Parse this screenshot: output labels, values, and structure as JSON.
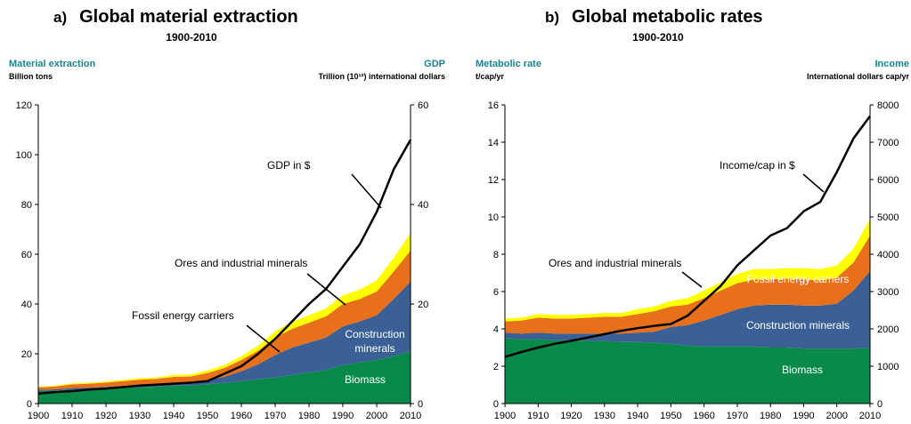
{
  "panels": [
    {
      "letter": "a)",
      "title": "Global material extraction",
      "subtitle": "1900-2010",
      "left_axis": {
        "title": "Material extraction",
        "unit": "Billion tons",
        "ticks": [
          "0",
          "20",
          "40",
          "60",
          "80",
          "100",
          "120"
        ]
      },
      "right_axis": {
        "title": "GDP",
        "unit": "Trillion (10¹²) international dollars",
        "ticks": [
          "0",
          "20",
          "40",
          "60"
        ]
      },
      "x_ticks": [
        "1900",
        "1910",
        "1920",
        "1930",
        "1940",
        "1950",
        "1960",
        "1970",
        "1980",
        "1990",
        "2000",
        "2010"
      ],
      "annotations": {
        "gdp": "GDP in $",
        "ores": "Ores and industrial minerals",
        "fossil": "Fossil energy carriers",
        "construction_1": "Construction",
        "construction_2": "minerals",
        "biomass": "Biomass"
      }
    },
    {
      "letter": "b)",
      "title": "Global metabolic rates",
      "subtitle": "1900-2010",
      "left_axis": {
        "title": "Metabolic rate",
        "unit": "t/cap/yr",
        "ticks": [
          "0",
          "2",
          "4",
          "6",
          "8",
          "10",
          "12",
          "14",
          "16"
        ]
      },
      "right_axis": {
        "title": "Income",
        "unit": "International dollars cap/yr",
        "ticks": [
          "0",
          "1000",
          "2000",
          "3000",
          "4000",
          "5000",
          "6000",
          "7000",
          "8000"
        ]
      },
      "x_ticks": [
        "1900",
        "1910",
        "1920",
        "1930",
        "1940",
        "1950",
        "1960",
        "1970",
        "1980",
        "1990",
        "2000",
        "2010"
      ],
      "annotations": {
        "income": "Income/cap in $",
        "ores": "Ores and industrial minerals",
        "fossil": "Fossil energy carriers",
        "construction": "Construction minerals",
        "biomass": "Biomass"
      }
    }
  ],
  "colors": {
    "biomass": "#0a8a4a",
    "construction": "#3a6096",
    "fossil": "#e8701a",
    "ores": "#ffff00",
    "line": "#000000",
    "axis_title": "#17858f"
  },
  "chart_data": [
    {
      "type": "area",
      "title": "Global material extraction",
      "subtitle": "1900-2010",
      "x": [
        1900,
        1905,
        1910,
        1915,
        1920,
        1925,
        1930,
        1935,
        1940,
        1945,
        1950,
        1955,
        1960,
        1965,
        1970,
        1975,
        1980,
        1985,
        1990,
        1995,
        2000,
        2005,
        2010
      ],
      "ylabel": "Material extraction, Billion tons",
      "y2label": "GDP, Trillion (10¹²) international dollars",
      "ylim": [
        0,
        120
      ],
      "y2lim": [
        0,
        60
      ],
      "xlim": [
        1900,
        2010
      ],
      "stacked": true,
      "series": [
        {
          "name": "Biomass",
          "values": [
            5.0,
            5.2,
            5.6,
            5.8,
            6.0,
            6.3,
            6.6,
            6.8,
            7.2,
            7.3,
            7.8,
            8.3,
            9.0,
            9.8,
            10.5,
            11.5,
            12.5,
            13.5,
            15.5,
            16.5,
            17.5,
            19.0,
            21.0
          ]
        },
        {
          "name": "Construction minerals",
          "values": [
            0.5,
            0.5,
            0.6,
            0.6,
            0.7,
            0.8,
            0.9,
            0.9,
            1.0,
            1.0,
            1.5,
            2.5,
            4.0,
            6.0,
            9.0,
            11.0,
            12.0,
            13.0,
            15.5,
            16.5,
            18.0,
            23.0,
            28.0
          ]
        },
        {
          "name": "Fossil energy carriers",
          "values": [
            1.0,
            1.2,
            1.5,
            1.6,
            1.7,
            1.9,
            2.1,
            2.2,
            2.5,
            2.6,
            3.0,
            3.5,
            4.5,
            5.5,
            7.0,
            7.5,
            8.0,
            8.5,
            9.0,
            9.0,
            9.5,
            11.0,
            12.5
          ]
        },
        {
          "name": "Ores and industrial minerals",
          "values": [
            0.3,
            0.3,
            0.4,
            0.4,
            0.5,
            0.5,
            0.6,
            0.6,
            0.8,
            0.8,
            1.0,
            1.2,
            1.5,
            2.0,
            2.5,
            2.8,
            3.0,
            3.2,
            3.5,
            3.8,
            4.5,
            5.5,
            7.0
          ]
        }
      ],
      "line": {
        "name": "GDP in $",
        "axis": "right",
        "values": [
          2.0,
          2.3,
          2.5,
          2.8,
          3.0,
          3.3,
          3.6,
          3.8,
          4.0,
          4.2,
          4.5,
          6.0,
          7.5,
          10.0,
          13.0,
          16.5,
          20.0,
          23.0,
          27.5,
          32.0,
          38.5,
          47.0,
          53.0
        ]
      }
    },
    {
      "type": "area",
      "title": "Global metabolic rates",
      "subtitle": "1900-2010",
      "x": [
        1900,
        1905,
        1910,
        1915,
        1920,
        1925,
        1930,
        1935,
        1940,
        1945,
        1950,
        1955,
        1960,
        1965,
        1970,
        1975,
        1980,
        1985,
        1990,
        1995,
        2000,
        2005,
        2010
      ],
      "ylabel": "Metabolic rate, t/cap/yr",
      "y2label": "Income, International dollars cap/yr",
      "ylim": [
        0,
        16
      ],
      "y2lim": [
        0,
        8000
      ],
      "xlim": [
        1900,
        2010
      ],
      "stacked": true,
      "series": [
        {
          "name": "Biomass",
          "values": [
            3.5,
            3.45,
            3.45,
            3.4,
            3.4,
            3.35,
            3.35,
            3.3,
            3.3,
            3.25,
            3.2,
            3.1,
            3.05,
            3.05,
            3.05,
            3.05,
            3.0,
            3.0,
            2.95,
            2.95,
            2.95,
            2.95,
            3.0
          ]
        },
        {
          "name": "Construction minerals",
          "values": [
            0.3,
            0.3,
            0.35,
            0.35,
            0.35,
            0.4,
            0.4,
            0.45,
            0.5,
            0.6,
            0.9,
            1.1,
            1.4,
            1.7,
            2.0,
            2.2,
            2.3,
            2.3,
            2.3,
            2.3,
            2.4,
            3.1,
            4.1
          ]
        },
        {
          "name": "Fossil energy carriers",
          "values": [
            0.6,
            0.7,
            0.8,
            0.8,
            0.8,
            0.85,
            0.9,
            0.9,
            1.0,
            1.1,
            1.1,
            1.1,
            1.2,
            1.3,
            1.4,
            1.4,
            1.35,
            1.4,
            1.4,
            1.35,
            1.4,
            1.5,
            1.9
          ]
        },
        {
          "name": "Ores and industrial minerals",
          "values": [
            0.15,
            0.15,
            0.2,
            0.2,
            0.2,
            0.2,
            0.2,
            0.2,
            0.25,
            0.25,
            0.3,
            0.35,
            0.4,
            0.45,
            0.5,
            0.55,
            0.55,
            0.55,
            0.6,
            0.6,
            0.65,
            0.75,
            0.9
          ]
        }
      ],
      "line": {
        "name": "Income/cap in $",
        "axis": "right",
        "values": [
          1250,
          1380,
          1500,
          1600,
          1680,
          1770,
          1860,
          1950,
          2020,
          2080,
          2130,
          2350,
          2750,
          3150,
          3700,
          4100,
          4500,
          4700,
          5150,
          5400,
          6200,
          7100,
          7700
        ]
      }
    }
  ]
}
